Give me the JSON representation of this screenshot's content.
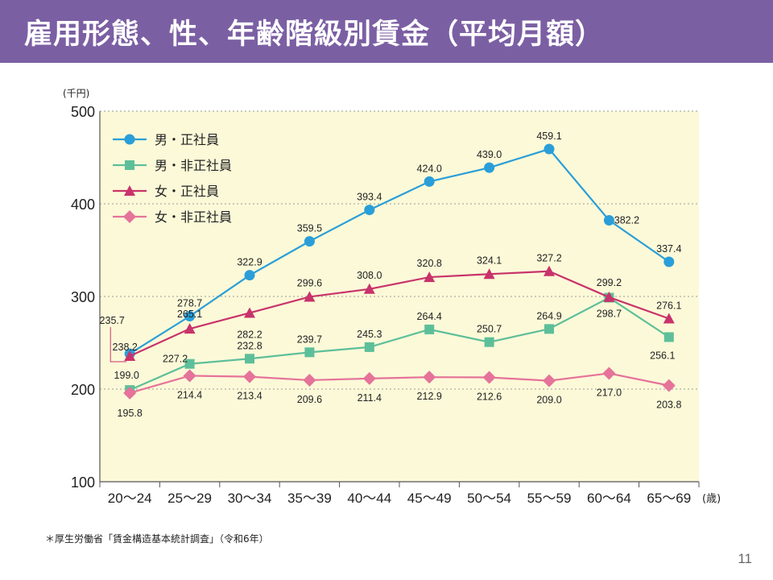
{
  "slide": {
    "title": "雇用形態、性、年齢階級別賃金（平均月額）",
    "footnote": "＊厚生労働省「賃金構造基本統計調査」（令和6年）",
    "page_number": "11"
  },
  "colors": {
    "title_bg": "#7b5fa3",
    "plot_bg": "#fcf9d8"
  },
  "chart_data": {
    "type": "line",
    "title": "",
    "ylabel": "(千円)",
    "xlabel": "(歳)",
    "ylim": [
      100,
      500
    ],
    "yticks": [
      "100",
      "200",
      "300",
      "400",
      "500"
    ],
    "categories": [
      "20〜24",
      "25〜29",
      "30〜34",
      "35〜39",
      "40〜44",
      "45〜49",
      "50〜54",
      "55〜59",
      "60〜64",
      "65〜69"
    ],
    "series": [
      {
        "name": "男・正社員",
        "marker": "circle",
        "color": "#2a9ed8",
        "values": [
          238.2,
          278.7,
          322.9,
          359.5,
          393.4,
          424.0,
          439.0,
          459.1,
          382.2,
          337.4
        ],
        "labels": [
          "238.2",
          "278.7",
          "322.9",
          "359.5",
          "393.4",
          "424.0",
          "439.0",
          "459.1",
          "382.2",
          "337.4"
        ]
      },
      {
        "name": "男・非正社員",
        "marker": "square",
        "color": "#5dbf9a",
        "values": [
          199.0,
          227.2,
          232.8,
          239.7,
          245.3,
          264.4,
          250.7,
          264.9,
          298.7,
          256.1
        ],
        "labels": [
          "199.0",
          "227.2",
          "232.8",
          "239.7",
          "245.3",
          "264.4",
          "250.7",
          "264.9",
          "298.7",
          "256.1"
        ]
      },
      {
        "name": "女・正社員",
        "marker": "triangle",
        "color": "#c8336b",
        "values": [
          235.7,
          265.1,
          282.2,
          299.6,
          308.0,
          320.8,
          324.1,
          327.2,
          299.2,
          276.1
        ],
        "labels": [
          "235.7",
          "265.1",
          "282.2",
          "299.6",
          "308.0",
          "320.8",
          "324.1",
          "327.2",
          "299.2",
          "276.1"
        ]
      },
      {
        "name": "女・非正社員",
        "marker": "diamond",
        "color": "#e5739a",
        "values": [
          195.8,
          214.4,
          213.4,
          209.6,
          211.4,
          212.9,
          212.6,
          209.0,
          217.0,
          203.8
        ],
        "labels": [
          "195.8",
          "214.4",
          "213.4",
          "209.6",
          "211.4",
          "212.9",
          "212.6",
          "209.0",
          "217.0",
          "203.8"
        ]
      }
    ]
  }
}
